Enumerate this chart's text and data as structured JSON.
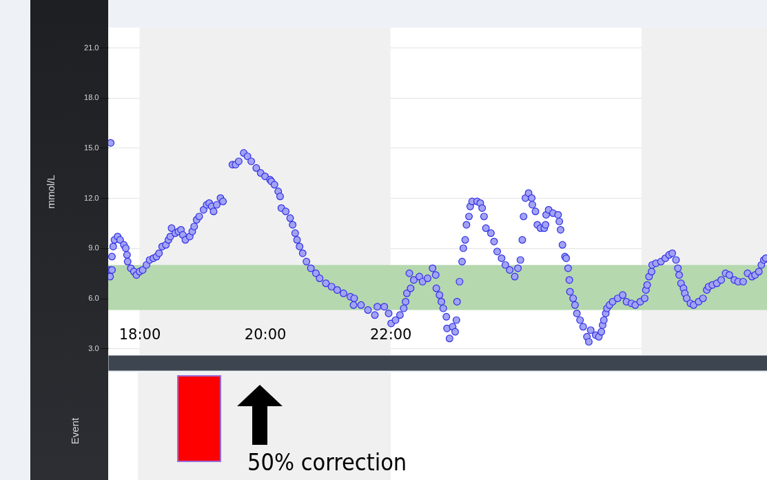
{
  "chart_data": [
    {
      "type": "scatter",
      "ylabel": "mmol/L",
      "marker": "circle",
      "grid": "y",
      "xlim": [
        17.5,
        28
      ],
      "ylim": [
        2.6,
        22.2
      ],
      "xticks": [
        {
          "value": 18,
          "label": "18:00"
        },
        {
          "value": 20,
          "label": "20:00"
        },
        {
          "value": 22,
          "label": "22:00"
        },
        {
          "value": 24,
          "label": null
        },
        {
          "value": 26,
          "label": null
        }
      ],
      "yticks": [
        {
          "value": 3,
          "label": "3.0"
        },
        {
          "value": 6,
          "label": "6.0"
        },
        {
          "value": 9,
          "label": "9.0"
        },
        {
          "value": 12,
          "label": "12.0"
        },
        {
          "value": 15,
          "label": "15.0"
        },
        {
          "value": 18,
          "label": "18.0"
        },
        {
          "value": 21,
          "label": "21.0"
        }
      ],
      "bands": [
        {
          "axis": "x",
          "from": 18,
          "to": 22,
          "color": "#f0f0f0"
        },
        {
          "axis": "x",
          "from": 26,
          "to": 28,
          "color": "#f0f0f0"
        },
        {
          "axis": "y",
          "from": 5.3,
          "to": 8.0,
          "color": "#b5d8ae"
        }
      ],
      "x": [
        17.53,
        17.53,
        17.54,
        17.56,
        17.56,
        17.58,
        17.6,
        17.65,
        17.69,
        17.75,
        17.78,
        17.8,
        17.81,
        17.86,
        17.91,
        17.95,
        18.0,
        18.05,
        18.11,
        18.16,
        18.22,
        18.27,
        18.31,
        18.36,
        18.42,
        18.46,
        18.49,
        18.51,
        18.57,
        18.62,
        18.66,
        18.69,
        18.73,
        18.8,
        18.84,
        18.87,
        18.91,
        18.95,
        19.02,
        19.07,
        19.11,
        19.15,
        19.18,
        19.23,
        19.29,
        19.33,
        19.48,
        19.53,
        19.58,
        19.66,
        19.72,
        19.78,
        19.86,
        19.93,
        20.0,
        20.08,
        20.1,
        20.15,
        20.21,
        20.24,
        20.26,
        20.33,
        20.4,
        20.44,
        20.48,
        20.51,
        20.55,
        20.6,
        20.66,
        20.73,
        20.81,
        20.87,
        20.97,
        21.06,
        21.15,
        21.25,
        21.36,
        21.42,
        21.41,
        21.53,
        21.64,
        21.75,
        21.79,
        21.9,
        21.97,
        22.01,
        22.08,
        22.15,
        22.21,
        22.24,
        22.26,
        22.32,
        22.3,
        22.37,
        22.46,
        22.51,
        22.59,
        22.67,
        22.72,
        22.73,
        22.78,
        22.81,
        22.84,
        22.89,
        22.9,
        22.94,
        22.99,
        23.03,
        23.05,
        23.06,
        23.1,
        23.14,
        23.16,
        23.19,
        23.21,
        23.25,
        23.27,
        23.3,
        23.38,
        23.43,
        23.46,
        23.49,
        23.52,
        23.6,
        23.65,
        23.7,
        23.77,
        23.83,
        23.9,
        23.98,
        24.03,
        24.07,
        24.1,
        24.12,
        24.15,
        24.2,
        24.25,
        24.26,
        24.31,
        24.34,
        24.39,
        24.45,
        24.47,
        24.48,
        24.52,
        24.59,
        24.67,
        24.69,
        24.71,
        24.74,
        24.78,
        24.8,
        24.83,
        24.85,
        24.86,
        24.91,
        24.94,
        24.97,
        25.02,
        25.07,
        25.13,
        25.16,
        25.19,
        25.27,
        25.32,
        25.36,
        25.38,
        25.4,
        25.43,
        25.45,
        25.49,
        25.54,
        25.62,
        25.7,
        25.76,
        25.84,
        25.9,
        25.98,
        26.05,
        26.07,
        26.09,
        26.12,
        26.16,
        26.17,
        26.23,
        26.31,
        26.38,
        26.44,
        26.49,
        26.55,
        26.58,
        26.6,
        26.63,
        26.67,
        26.69,
        26.72,
        26.78,
        26.83,
        26.91,
        26.98,
        27.04,
        27.07,
        27.13,
        27.2,
        27.27,
        27.34,
        27.4,
        27.48,
        27.54,
        27.62,
        27.69,
        27.76,
        27.81,
        27.87,
        27.91,
        27.95,
        27.98
      ],
      "series": [
        {
          "color": "#a3a3f5",
          "values": [
            7.7,
            7.3,
            15.3,
            7.7,
            8.5,
            9.1,
            9.5,
            9.7,
            9.5,
            9.2,
            9.0,
            8.6,
            8.2,
            7.8,
            7.6,
            7.4,
            7.6,
            7.7,
            8.0,
            8.3,
            8.4,
            8.5,
            8.7,
            9.1,
            9.2,
            9.5,
            9.7,
            10.2,
            9.9,
            10.0,
            10.1,
            9.8,
            9.5,
            9.7,
            10.0,
            10.3,
            10.7,
            10.9,
            11.3,
            11.6,
            11.7,
            11.5,
            11.2,
            11.6,
            12.0,
            11.8,
            14.0,
            14.0,
            14.2,
            14.7,
            14.5,
            14.2,
            13.8,
            13.5,
            13.3,
            13.1,
            13.0,
            12.8,
            12.4,
            12.1,
            11.4,
            11.2,
            10.8,
            10.4,
            9.9,
            9.5,
            9.1,
            8.7,
            8.2,
            7.8,
            7.5,
            7.2,
            6.9,
            6.7,
            6.5,
            6.3,
            6.1,
            6.0,
            5.6,
            5.6,
            5.3,
            5.0,
            5.5,
            5.5,
            5.1,
            4.5,
            4.7,
            5.0,
            5.4,
            5.8,
            6.3,
            6.6,
            7.5,
            7.1,
            7.3,
            7.0,
            7.2,
            7.8,
            7.4,
            6.6,
            6.2,
            5.8,
            5.4,
            4.9,
            4.2,
            3.6,
            4.3,
            4.0,
            4.7,
            5.8,
            7.0,
            8.2,
            9.0,
            9.5,
            10.4,
            10.9,
            11.5,
            11.8,
            11.8,
            11.7,
            11.4,
            10.9,
            10.2,
            9.9,
            9.4,
            8.8,
            8.4,
            8.0,
            7.7,
            7.3,
            7.8,
            8.3,
            9.5,
            10.9,
            12.0,
            12.3,
            12.0,
            11.6,
            11.2,
            10.4,
            10.2,
            10.2,
            10.4,
            11.0,
            11.3,
            11.1,
            11.0,
            10.6,
            10.1,
            9.2,
            8.5,
            8.4,
            7.8,
            7.1,
            6.4,
            6.0,
            5.6,
            5.1,
            4.7,
            4.3,
            3.7,
            3.4,
            4.1,
            3.8,
            3.7,
            4.0,
            4.4,
            4.7,
            5.1,
            5.4,
            5.6,
            5.8,
            6.0,
            6.2,
            5.8,
            5.7,
            5.6,
            5.8,
            6.0,
            6.5,
            6.8,
            7.3,
            7.6,
            8.0,
            8.1,
            8.2,
            8.4,
            8.6,
            8.7,
            8.3,
            7.8,
            7.4,
            6.9,
            6.6,
            6.3,
            6.0,
            5.7,
            5.6,
            5.8,
            6.0,
            6.5,
            6.7,
            6.8,
            6.9,
            7.1,
            7.5,
            7.4,
            7.1,
            7.0,
            7.0,
            7.5,
            7.3,
            7.4,
            7.6,
            8.0,
            8.3,
            8.4
          ]
        }
      ]
    },
    {
      "type": "other",
      "ylabel": "Event",
      "annotations": [
        "50% correction"
      ]
    }
  ]
}
